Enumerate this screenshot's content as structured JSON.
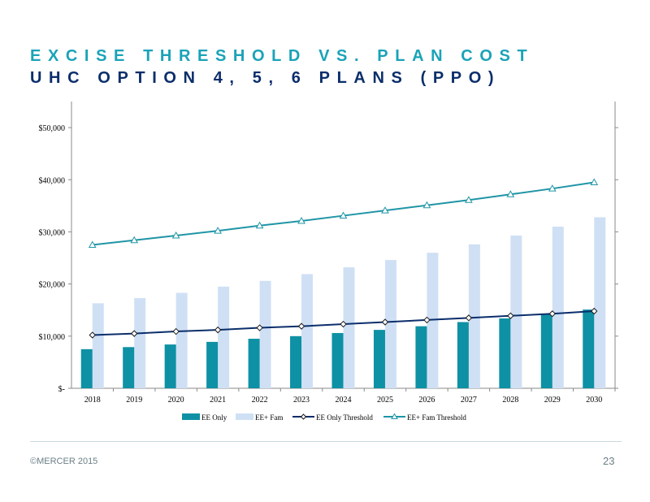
{
  "header": {
    "title": "EXCISE THRESHOLD VS. PLAN COST",
    "subtitle": "UHC OPTION 4, 5, 6 PLANS (PPO)"
  },
  "footer": {
    "copyright": "©MERCER 2015",
    "page_number": "23"
  },
  "colors": {
    "ee_only": "#0e91a4",
    "ee_fam": "#cfe0f5",
    "ee_only_threshold": "#0b2e6b",
    "ee_fam_threshold": "#1f95a6"
  },
  "chart_data": {
    "type": "bar",
    "categories": [
      "2018",
      "2019",
      "2020",
      "2021",
      "2022",
      "2023",
      "2024",
      "2025",
      "2026",
      "2027",
      "2028",
      "2029",
      "2030"
    ],
    "ylim": [
      0,
      55000
    ],
    "yticks": [
      0,
      10000,
      20000,
      30000,
      40000,
      50000
    ],
    "ytick_labels": [
      "$-",
      "$10,000",
      "$20,000",
      "$30,000",
      "$40,000",
      "$50,000"
    ],
    "series": [
      {
        "name": "EE Only",
        "kind": "bar",
        "values": [
          7500,
          7900,
          8400,
          8900,
          9500,
          10000,
          10600,
          11200,
          11900,
          12700,
          13400,
          14200,
          15100
        ]
      },
      {
        "name": "EE+ Fam",
        "kind": "bar",
        "values": [
          16300,
          17300,
          18300,
          19500,
          20600,
          21900,
          23200,
          24600,
          26000,
          27600,
          29300,
          31000,
          32800
        ]
      },
      {
        "name": "EE Only Threshold",
        "kind": "line",
        "marker": "diamond",
        "values": [
          10200,
          10500,
          10900,
          11200,
          11600,
          11900,
          12300,
          12700,
          13100,
          13500,
          13900,
          14300,
          14800
        ]
      },
      {
        "name": "EE+ Fam Threshold",
        "kind": "line",
        "marker": "triangle",
        "values": [
          27500,
          28400,
          29300,
          30200,
          31200,
          32100,
          33100,
          34100,
          35100,
          36100,
          37200,
          38300,
          39500
        ]
      }
    ],
    "legend_position": "bottom"
  }
}
